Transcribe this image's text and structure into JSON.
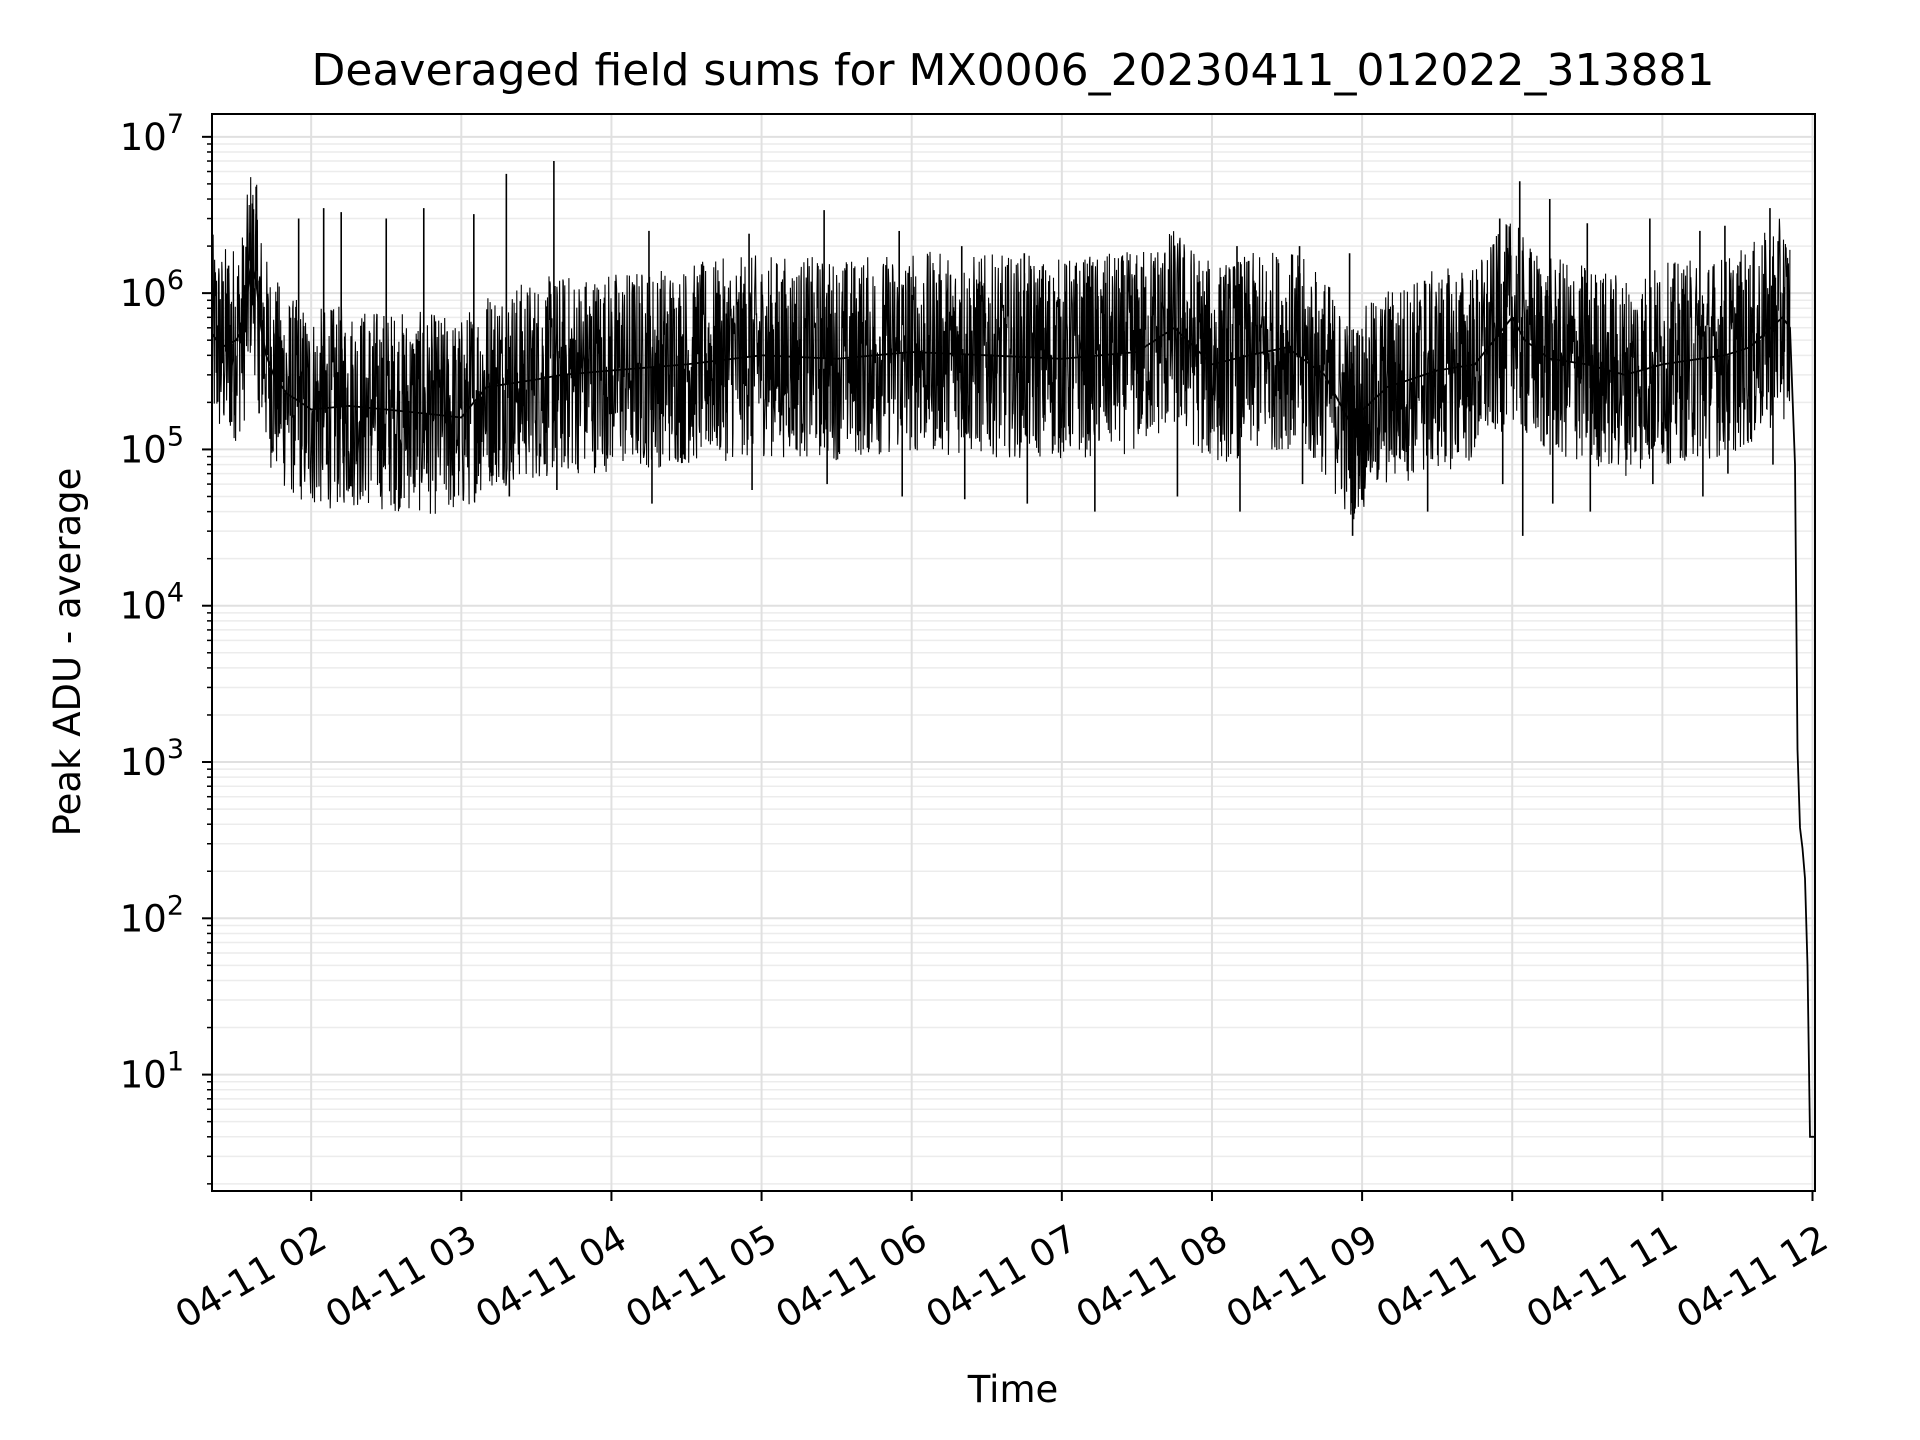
{
  "chart_data": {
    "type": "line",
    "title": "Deaveraged field sums for MX0006_20230411_012022_313881",
    "xlabel": "Time",
    "ylabel": "Peak ADU - average",
    "yscale": "log",
    "grid": true,
    "line_color": "#000000",
    "xlim": [
      "2023-04-11T01:20:22",
      "2023-04-11T12:01:00"
    ],
    "ylim": [
      1.8,
      14000000
    ],
    "x_ticks": [
      "04-11 02",
      "04-11 03",
      "04-11 04",
      "04-11 05",
      "04-11 06",
      "04-11 07",
      "04-11 08",
      "04-11 09",
      "04-11 10",
      "04-11 11",
      "04-11 12"
    ],
    "y_ticks": [
      {
        "value": 10,
        "base": "10",
        "exp": "1"
      },
      {
        "value": 100,
        "base": "10",
        "exp": "2"
      },
      {
        "value": 1000,
        "base": "10",
        "exp": "3"
      },
      {
        "value": 10000,
        "base": "10",
        "exp": "4"
      },
      {
        "value": 100000,
        "base": "10",
        "exp": "5"
      },
      {
        "value": 1000000,
        "base": "10",
        "exp": "6"
      },
      {
        "value": 10000000,
        "base": "10",
        "exp": "7"
      }
    ],
    "series": [
      {
        "x": [
          "2023-04-11T01:20:22",
          "2023-04-11T01:24:00",
          "2023-04-11T01:30:00",
          "2023-04-11T01:33:00",
          "2023-04-11T01:36:00",
          "2023-04-11T01:38:00",
          "2023-04-11T01:40:00",
          "2023-04-11T01:42:00",
          "2023-04-11T01:45:00",
          "2023-04-11T01:50:00",
          "2023-04-11T02:00:00",
          "2023-04-11T02:15:00",
          "2023-04-11T02:30:00",
          "2023-04-11T02:45:00",
          "2023-04-11T03:00:00",
          "2023-04-11T03:10:00",
          "2023-04-11T03:30:00",
          "2023-04-11T03:40:00",
          "2023-04-11T04:00:00",
          "2023-04-11T04:30:00",
          "2023-04-11T05:00:00",
          "2023-04-11T05:30:00",
          "2023-04-11T06:00:00",
          "2023-04-11T06:30:00",
          "2023-04-11T07:00:00",
          "2023-04-11T07:30:00",
          "2023-04-11T07:45:00",
          "2023-04-11T08:00:00",
          "2023-04-11T08:15:00",
          "2023-04-11T08:30:00",
          "2023-04-11T08:45:00",
          "2023-04-11T08:55:00",
          "2023-04-11T09:10:00",
          "2023-04-11T09:30:00",
          "2023-04-11T09:45:00",
          "2023-04-11T10:00:00",
          "2023-04-11T10:05:00",
          "2023-04-11T10:15:00",
          "2023-04-11T10:30:00",
          "2023-04-11T10:45:00",
          "2023-04-11T11:00:00",
          "2023-04-11T11:15:00",
          "2023-04-11T11:25:00",
          "2023-04-11T11:35:00",
          "2023-04-11T11:48:00",
          "2023-04-11T11:51:00",
          "2023-04-11T11:53:00",
          "2023-04-11T11:54:00",
          "2023-04-11T11:55:00",
          "2023-04-11T11:56:00",
          "2023-04-11T11:57:00",
          "2023-04-11T11:58:00",
          "2023-04-11T11:59:00",
          "2023-04-11T12:00:00",
          "2023-04-11T12:01:00"
        ],
        "y": [
          550000,
          450000,
          500000,
          600000,
          1600000,
          1200000,
          600000,
          400000,
          300000,
          230000,
          180000,
          190000,
          180000,
          170000,
          160000,
          250000,
          280000,
          300000,
          320000,
          350000,
          400000,
          380000,
          420000,
          400000,
          380000,
          420000,
          600000,
          350000,
          400000,
          450000,
          300000,
          150000,
          250000,
          320000,
          350000,
          700000,
          500000,
          380000,
          350000,
          300000,
          350000,
          380000,
          400000,
          450000,
          700000,
          600000,
          80000,
          1200,
          380,
          280,
          180,
          50,
          4,
          4,
          4
        ]
      }
    ],
    "spikes": {
      "x": [
        "2023-04-11T01:27:00",
        "2023-04-11T01:38:00",
        "2023-04-11T01:55:00",
        "2023-04-11T02:05:00",
        "2023-04-11T02:12:00",
        "2023-04-11T02:30:00",
        "2023-04-11T02:45:00",
        "2023-04-11T03:05:00",
        "2023-04-11T03:18:00",
        "2023-04-11T03:37:00",
        "2023-04-11T04:15:00",
        "2023-04-11T04:55:00",
        "2023-04-11T05:25:00",
        "2023-04-11T05:55:00",
        "2023-04-11T06:20:00",
        "2023-04-11T06:45:00",
        "2023-04-11T07:12:00",
        "2023-04-11T07:45:00",
        "2023-04-11T08:10:00",
        "2023-04-11T08:35:00",
        "2023-04-11T08:55:00",
        "2023-04-11T09:25:00",
        "2023-04-11T09:55:00",
        "2023-04-11T10:03:00",
        "2023-04-11T10:15:00",
        "2023-04-11T10:30:00",
        "2023-04-11T10:55:00",
        "2023-04-11T11:15:00",
        "2023-04-11T11:25:00",
        "2023-04-11T11:43:00"
      ],
      "high": [
        1500000,
        4800000,
        3000000,
        3500000,
        3300000,
        3000000,
        3500000,
        3200000,
        5800000,
        7000000,
        2500000,
        2400000,
        3400000,
        2500000,
        2000000,
        1800000,
        1500000,
        2000000,
        2000000,
        2000000,
        1800000,
        1200000,
        3000000,
        5200000,
        4000000,
        2800000,
        3000000,
        2500000,
        2700000,
        3500000
      ],
      "low": [
        150000,
        170000,
        100000,
        80000,
        90000,
        80000,
        70000,
        60000,
        50000,
        55000,
        45000,
        55000,
        60000,
        50000,
        48000,
        45000,
        40000,
        50000,
        40000,
        60000,
        28000,
        40000,
        60000,
        28000,
        45000,
        40000,
        60000,
        50000,
        70000,
        80000
      ]
    }
  }
}
